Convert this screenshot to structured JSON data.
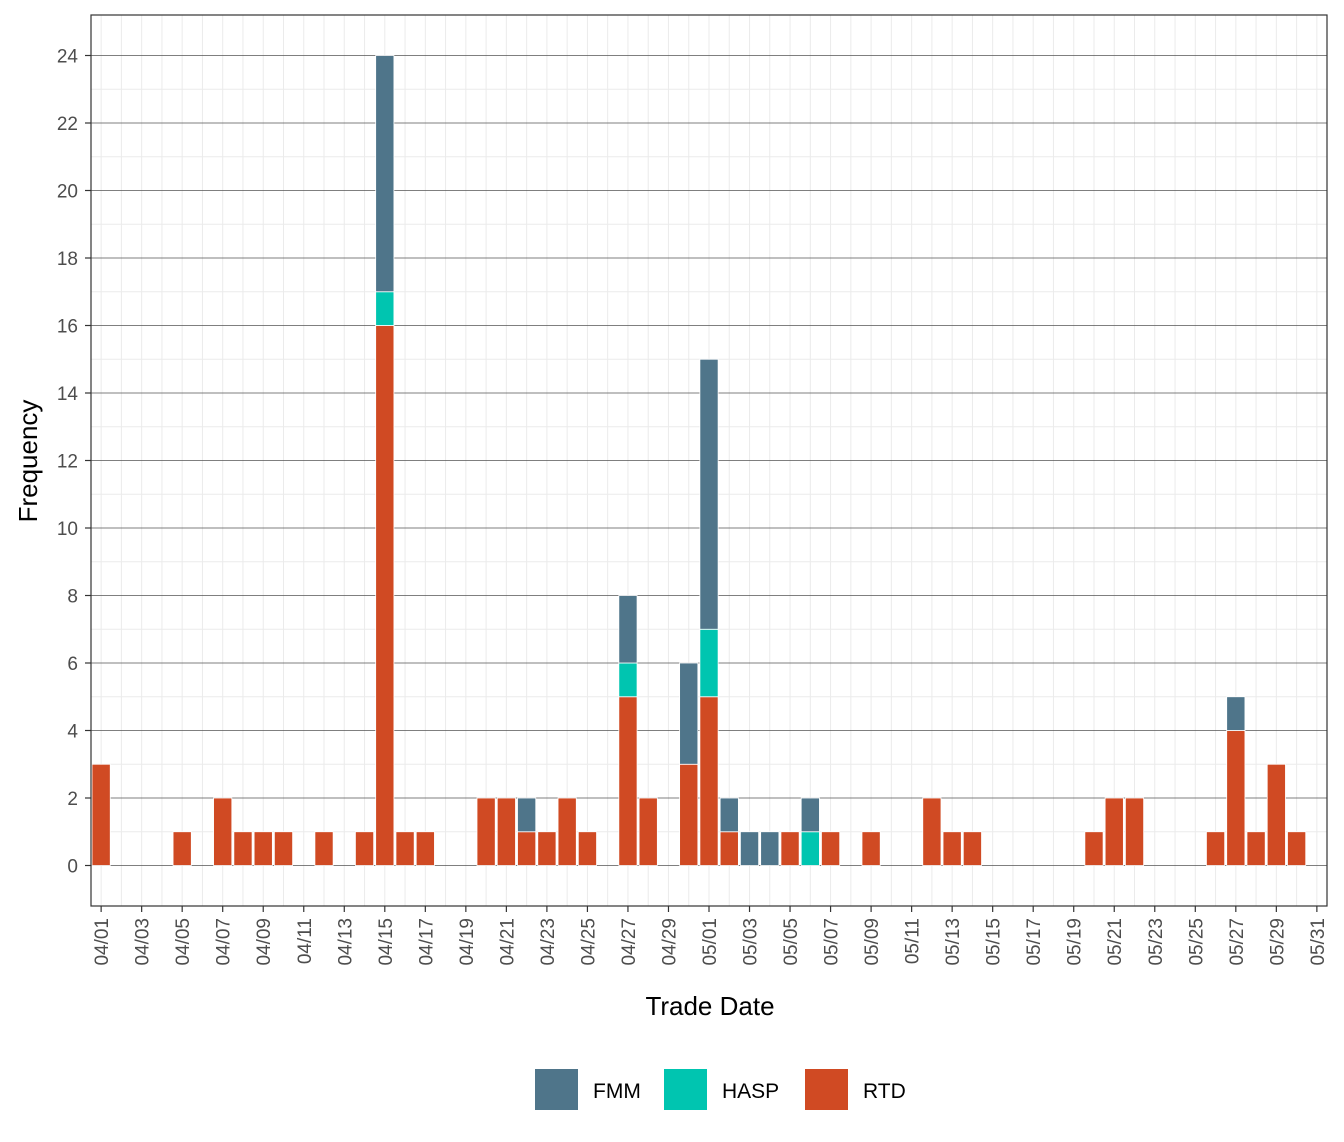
{
  "chart_data": {
    "type": "bar",
    "stacked": true,
    "xlabel": "Trade Date",
    "ylabel": "Frequency",
    "ylim": [
      -1.2,
      25.2
    ],
    "yticks": [
      0,
      2,
      4,
      6,
      8,
      10,
      12,
      14,
      16,
      18,
      20,
      22,
      24
    ],
    "x_tick_labels": [
      "04/01",
      "04/03",
      "04/05",
      "04/07",
      "04/09",
      "04/11",
      "04/13",
      "04/15",
      "04/17",
      "04/19",
      "04/21",
      "04/23",
      "04/25",
      "04/27",
      "04/29",
      "05/01",
      "05/03",
      "05/05",
      "05/07",
      "05/09",
      "05/11",
      "05/13",
      "05/15",
      "05/17",
      "05/19",
      "05/21",
      "05/23",
      "05/25",
      "05/27",
      "05/29",
      "05/31"
    ],
    "grid": true,
    "legend_position": "bottom",
    "categories": [
      "04/01",
      "04/02",
      "04/03",
      "04/04",
      "04/05",
      "04/06",
      "04/07",
      "04/08",
      "04/09",
      "04/10",
      "04/11",
      "04/12",
      "04/13",
      "04/14",
      "04/15",
      "04/16",
      "04/17",
      "04/18",
      "04/19",
      "04/20",
      "04/21",
      "04/22",
      "04/23",
      "04/24",
      "04/25",
      "04/26",
      "04/27",
      "04/28",
      "04/29",
      "04/30",
      "05/01",
      "05/02",
      "05/03",
      "05/04",
      "05/05",
      "05/06",
      "05/07",
      "05/08",
      "05/09",
      "05/10",
      "05/11",
      "05/12",
      "05/13",
      "05/14",
      "05/15",
      "05/16",
      "05/17",
      "05/18",
      "05/19",
      "05/20",
      "05/21",
      "05/22",
      "05/23",
      "05/24",
      "05/25",
      "05/26",
      "05/27",
      "05/28",
      "05/29",
      "05/30",
      "05/31"
    ],
    "series": [
      {
        "name": "RTD",
        "color": "#D04A23",
        "values": [
          3,
          0,
          0,
          0,
          1,
          0,
          2,
          1,
          1,
          1,
          0,
          1,
          0,
          1,
          16,
          1,
          1,
          0,
          0,
          2,
          2,
          1,
          1,
          2,
          1,
          0,
          5,
          2,
          0,
          3,
          5,
          1,
          0,
          0,
          1,
          0,
          1,
          0,
          1,
          0,
          0,
          2,
          1,
          1,
          0,
          0,
          0,
          0,
          0,
          1,
          2,
          2,
          0,
          0,
          0,
          1,
          4,
          1,
          3,
          1,
          0
        ]
      },
      {
        "name": "HASP",
        "color": "#00C5B0",
        "values": [
          0,
          0,
          0,
          0,
          0,
          0,
          0,
          0,
          0,
          0,
          0,
          0,
          0,
          0,
          1,
          0,
          0,
          0,
          0,
          0,
          0,
          0,
          0,
          0,
          0,
          0,
          1,
          0,
          0,
          0,
          2,
          0,
          0,
          0,
          0,
          1,
          0,
          0,
          0,
          0,
          0,
          0,
          0,
          0,
          0,
          0,
          0,
          0,
          0,
          0,
          0,
          0,
          0,
          0,
          0,
          0,
          0,
          0,
          0,
          0,
          0
        ]
      },
      {
        "name": "FMM",
        "color": "#4F758A",
        "values": [
          0,
          0,
          0,
          0,
          0,
          0,
          0,
          0,
          0,
          0,
          0,
          0,
          0,
          0,
          7,
          0,
          0,
          0,
          0,
          0,
          0,
          1,
          0,
          0,
          0,
          0,
          2,
          0,
          0,
          3,
          8,
          1,
          1,
          1,
          0,
          1,
          0,
          0,
          0,
          0,
          0,
          0,
          0,
          0,
          0,
          0,
          0,
          0,
          0,
          0,
          0,
          0,
          0,
          0,
          0,
          0,
          1,
          0,
          0,
          0,
          0
        ]
      }
    ],
    "legend_order": [
      "FMM",
      "HASP",
      "RTD"
    ]
  }
}
